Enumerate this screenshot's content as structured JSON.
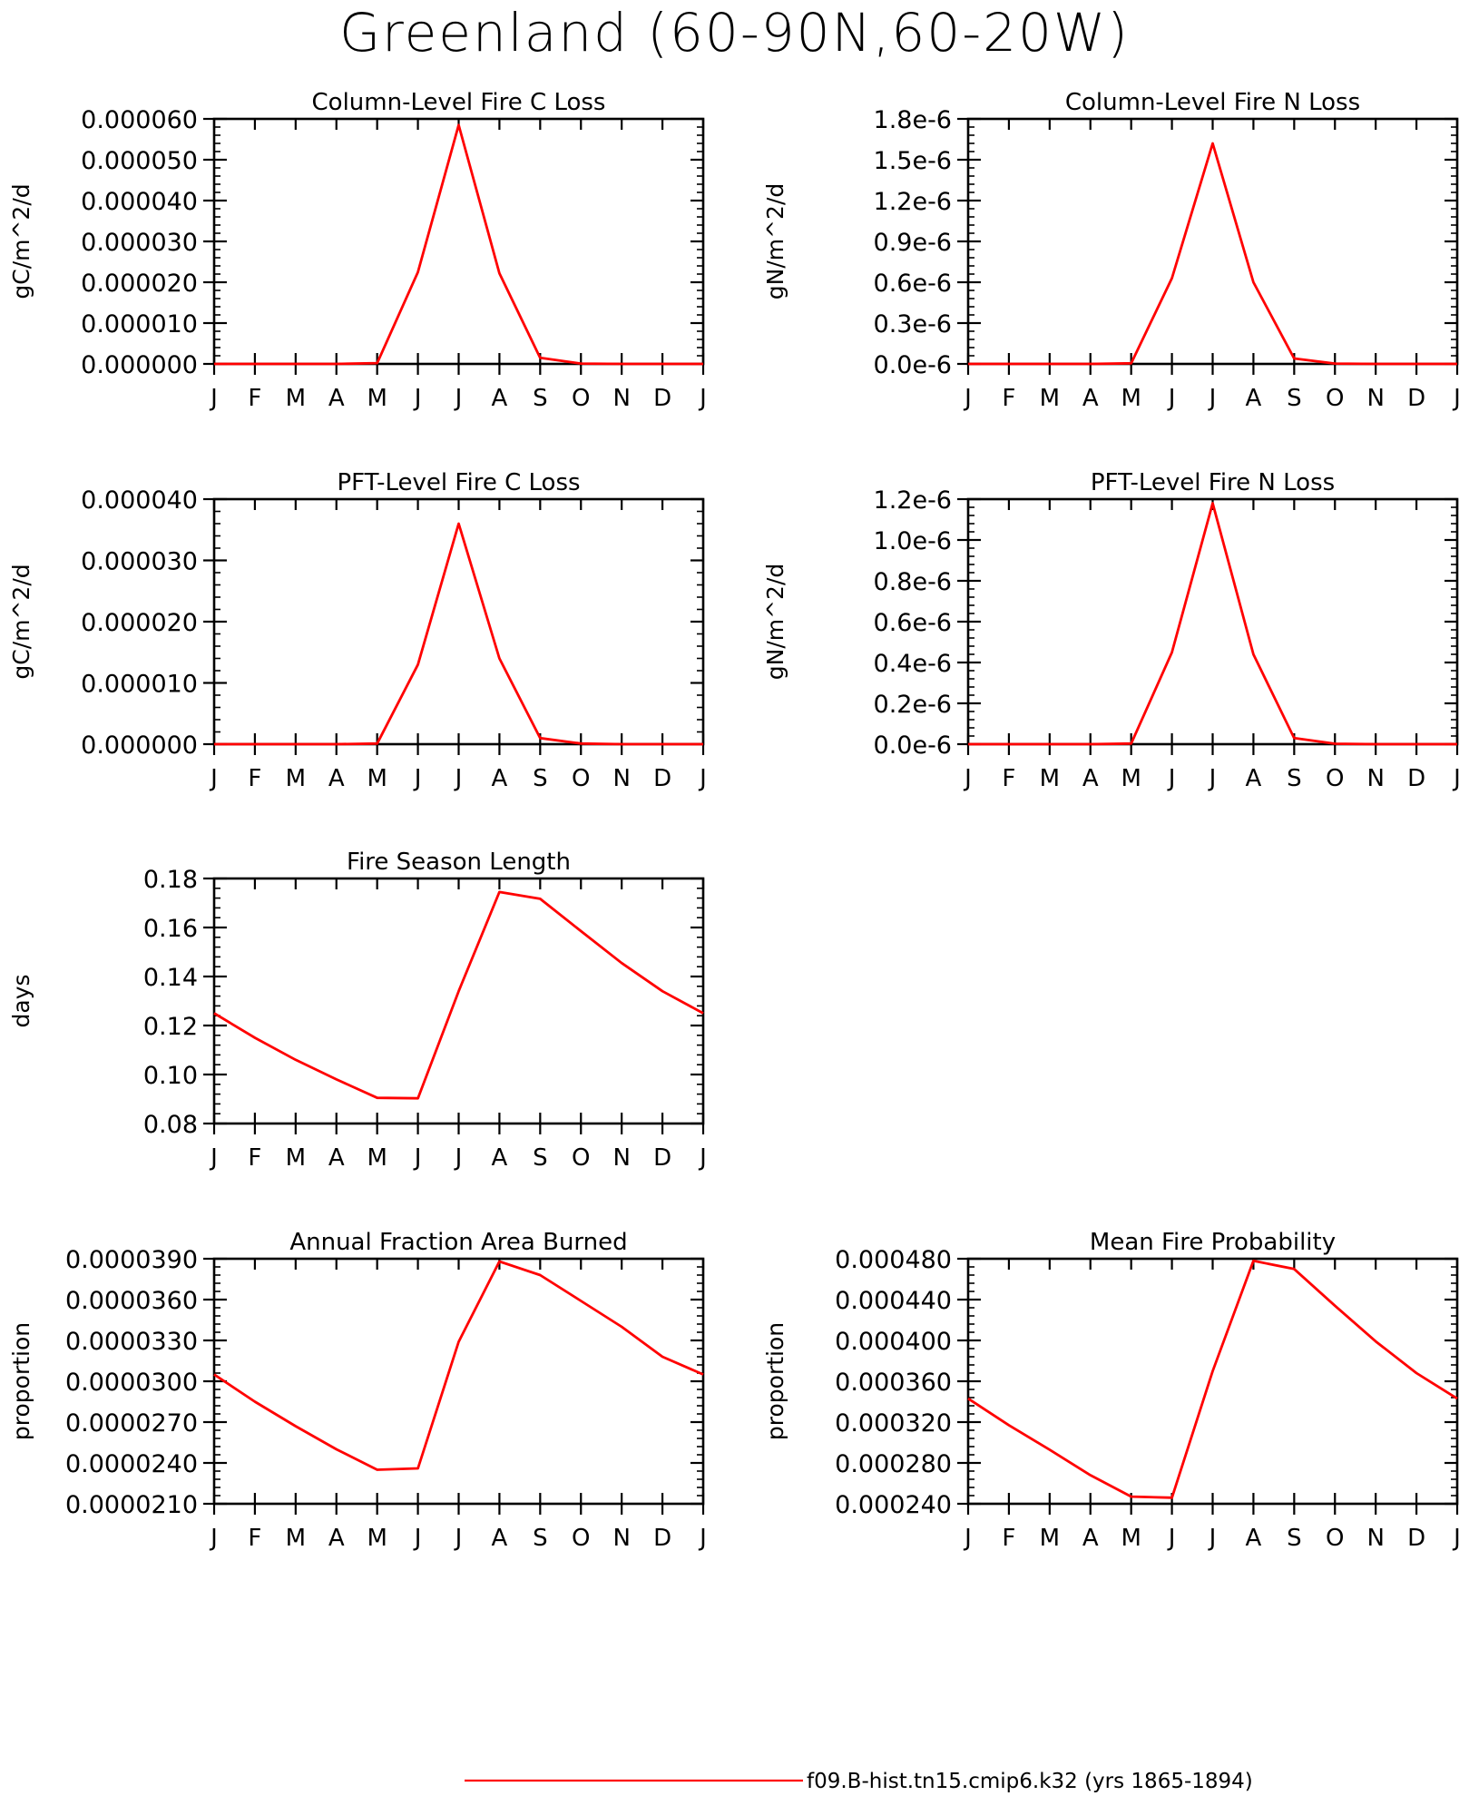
{
  "page": {
    "title": "Greenland (60-90N,60-20W)"
  },
  "legend": {
    "label": "f09.B-hist.tn15.cmip6.k32 (yrs 1865-1894)",
    "color": "#ff0000"
  },
  "style": {
    "line_color": "#ff0000",
    "axis_color": "#000000"
  },
  "chart_data": [
    {
      "type": "line",
      "title": "Column-Level Fire C Loss",
      "ylabel": "gC/m^2/d",
      "xlabel": "",
      "categories": [
        "J",
        "F",
        "M",
        "A",
        "M",
        "J",
        "J",
        "A",
        "S",
        "O",
        "N",
        "D",
        "J"
      ],
      "ylim": [
        0,
        6e-05
      ],
      "yticks": [
        0,
        1e-05,
        2e-05,
        3e-05,
        4e-05,
        5e-05,
        6e-05
      ],
      "ytick_labels": [
        "0.000000",
        "0.000010",
        "0.000020",
        "0.000030",
        "0.000040",
        "0.000050",
        "0.000060"
      ],
      "grid": false,
      "series": [
        {
          "values": [
            0,
            0,
            0,
            0,
            2e-07,
            2.25e-05,
            5.85e-05,
            2.22e-05,
            1.5e-06,
            1e-07,
            0,
            0,
            0
          ]
        }
      ]
    },
    {
      "type": "line",
      "title": "Column-Level Fire N Loss",
      "ylabel": "gN/m^2/d",
      "xlabel": "",
      "categories": [
        "J",
        "F",
        "M",
        "A",
        "M",
        "J",
        "J",
        "A",
        "S",
        "O",
        "N",
        "D",
        "J"
      ],
      "ylim": [
        0,
        1.8e-06
      ],
      "yticks": [
        0,
        3e-07,
        6e-07,
        9e-07,
        1.2e-06,
        1.5e-06,
        1.8e-06
      ],
      "ytick_labels": [
        "0.0e-6",
        "0.3e-6",
        "0.6e-6",
        "0.9e-6",
        "1.2e-6",
        "1.5e-6",
        "1.8e-6"
      ],
      "grid": false,
      "series": [
        {
          "values": [
            0,
            0,
            0,
            0,
            5e-09,
            6.3e-07,
            1.62e-06,
            6e-07,
            4e-08,
            3e-09,
            0,
            0,
            0
          ]
        }
      ]
    },
    {
      "type": "line",
      "title": "PFT-Level Fire C Loss",
      "ylabel": "gC/m^2/d",
      "xlabel": "",
      "categories": [
        "J",
        "F",
        "M",
        "A",
        "M",
        "J",
        "J",
        "A",
        "S",
        "O",
        "N",
        "D",
        "J"
      ],
      "ylim": [
        0,
        4e-05
      ],
      "yticks": [
        0,
        1e-05,
        2e-05,
        3e-05,
        4e-05
      ],
      "ytick_labels": [
        "0.000000",
        "0.000010",
        "0.000020",
        "0.000030",
        "0.000040"
      ],
      "grid": false,
      "series": [
        {
          "values": [
            0,
            0,
            0,
            0,
            1e-07,
            1.3e-05,
            3.6e-05,
            1.4e-05,
            1e-06,
            1e-07,
            0,
            0,
            0
          ]
        }
      ]
    },
    {
      "type": "line",
      "title": "PFT-Level Fire N Loss",
      "ylabel": "gN/m^2/d",
      "xlabel": "",
      "categories": [
        "J",
        "F",
        "M",
        "A",
        "M",
        "J",
        "J",
        "A",
        "S",
        "O",
        "N",
        "D",
        "J"
      ],
      "ylim": [
        0,
        1.2e-06
      ],
      "yticks": [
        0,
        2e-07,
        4e-07,
        6e-07,
        8e-07,
        1e-06,
        1.2e-06
      ],
      "ytick_labels": [
        "0.0e-6",
        "0.2e-6",
        "0.4e-6",
        "0.6e-6",
        "0.8e-6",
        "1.0e-6",
        "1.2e-6"
      ],
      "grid": false,
      "series": [
        {
          "values": [
            0,
            0,
            0,
            0,
            3e-09,
            4.5e-07,
            1.18e-06,
            4.4e-07,
            3e-08,
            2e-09,
            0,
            0,
            0
          ]
        }
      ]
    },
    {
      "type": "line",
      "title": "Fire Season Length",
      "ylabel": "days",
      "xlabel": "",
      "categories": [
        "J",
        "F",
        "M",
        "A",
        "M",
        "J",
        "J",
        "A",
        "S",
        "O",
        "N",
        "D",
        "J"
      ],
      "ylim": [
        0.08,
        0.18
      ],
      "yticks": [
        0.08,
        0.1,
        0.12,
        0.14,
        0.16,
        0.18
      ],
      "ytick_labels": [
        "0.08",
        "0.10",
        "0.12",
        "0.14",
        "0.16",
        "0.18"
      ],
      "grid": false,
      "series": [
        {
          "values": [
            0.125,
            0.115,
            0.106,
            0.098,
            0.0905,
            0.0903,
            0.134,
            0.1745,
            0.1717,
            0.1585,
            0.1455,
            0.134,
            0.125
          ]
        }
      ]
    },
    {
      "type": "line",
      "title": "Annual Fraction Area Burned",
      "ylabel": "proportion",
      "xlabel": "",
      "categories": [
        "J",
        "F",
        "M",
        "A",
        "M",
        "J",
        "J",
        "A",
        "S",
        "O",
        "N",
        "D",
        "J"
      ],
      "ylim": [
        2.1e-05,
        3.9e-05
      ],
      "yticks": [
        2.1e-05,
        2.4e-05,
        2.7e-05,
        3e-05,
        3.3e-05,
        3.6e-05,
        3.9e-05
      ],
      "ytick_labels": [
        "0.0000210",
        "0.0000240",
        "0.0000270",
        "0.0000300",
        "0.0000330",
        "0.0000360",
        "0.0000390"
      ],
      "grid": false,
      "series": [
        {
          "values": [
            3.05e-05,
            2.85e-05,
            2.67e-05,
            2.5e-05,
            2.35e-05,
            2.36e-05,
            3.29e-05,
            3.88e-05,
            3.78e-05,
            3.59e-05,
            3.4e-05,
            3.18e-05,
            3.05e-05
          ]
        }
      ]
    },
    {
      "type": "line",
      "title": "Mean Fire Probability",
      "ylabel": "proportion",
      "xlabel": "",
      "categories": [
        "J",
        "F",
        "M",
        "A",
        "M",
        "J",
        "J",
        "A",
        "S",
        "O",
        "N",
        "D",
        "J"
      ],
      "ylim": [
        0.00024,
        0.00048
      ],
      "yticks": [
        0.00024,
        0.00028,
        0.00032,
        0.00036,
        0.0004,
        0.00044,
        0.00048
      ],
      "ytick_labels": [
        "0.000240",
        "0.000280",
        "0.000320",
        "0.000360",
        "0.000400",
        "0.000440",
        "0.000480"
      ],
      "grid": false,
      "series": [
        {
          "values": [
            0.000343,
            0.000317,
            0.000293,
            0.000268,
            0.000247,
            0.000246,
            0.00037,
            0.000478,
            0.00047,
            0.000434,
            0.000399,
            0.000368,
            0.000343
          ]
        }
      ]
    }
  ]
}
